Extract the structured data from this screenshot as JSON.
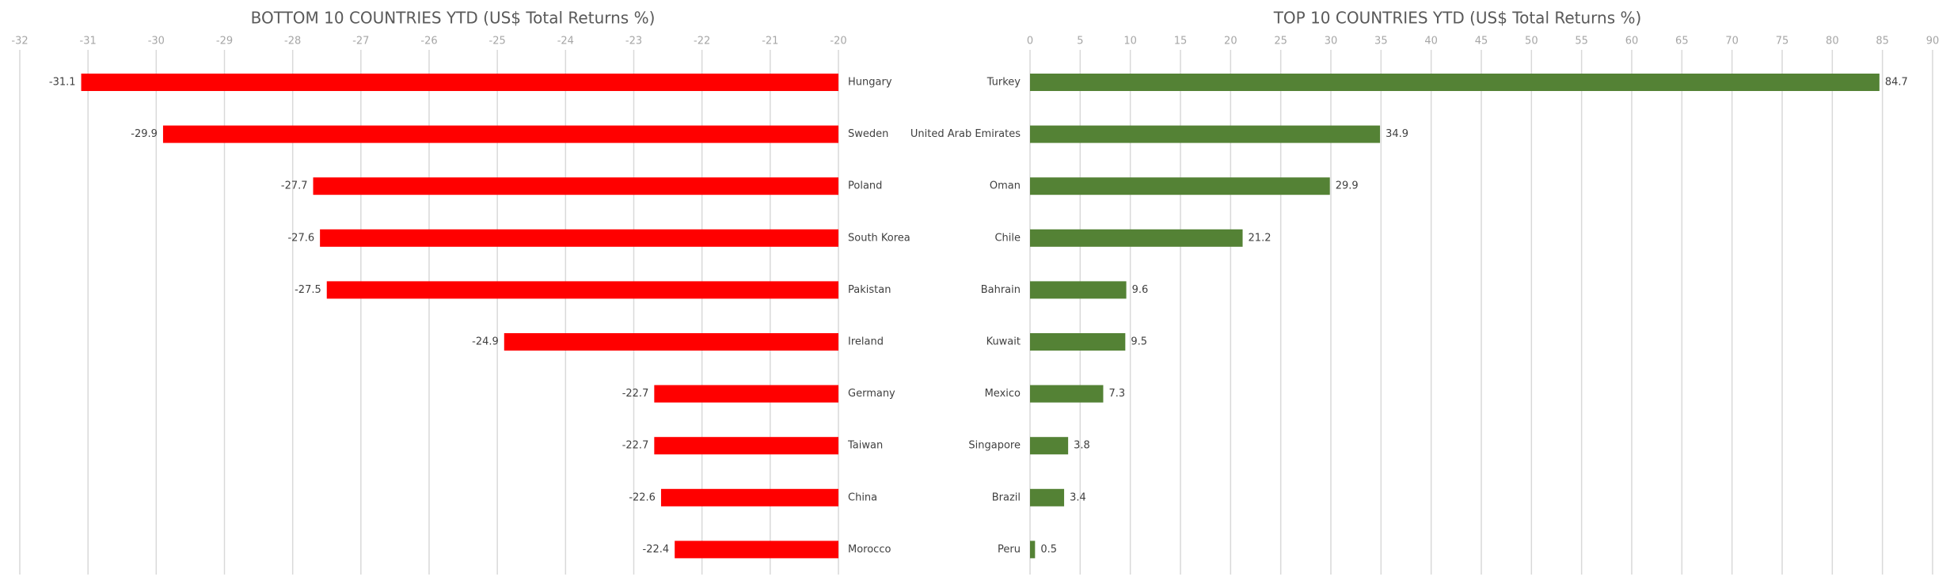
{
  "chart_data": [
    {
      "type": "bar",
      "orientation": "horizontal",
      "title": "BOTTOM 10 COUNTRIES YTD (US$ Total Returns %)",
      "categories": [
        "Hungary",
        "Sweden",
        "Poland",
        "South Korea",
        "Pakistan",
        "Ireland",
        "Germany",
        "Taiwan",
        "China",
        "Morocco"
      ],
      "values": [
        -31.1,
        -29.9,
        -27.7,
        -27.6,
        -27.5,
        -24.9,
        -22.7,
        -22.7,
        -22.6,
        -22.4
      ],
      "color": "#ff0000",
      "xlim": [
        -32,
        -20
      ],
      "xticks": [
        -32,
        -31,
        -30,
        -29,
        -28,
        -27,
        -26,
        -25,
        -24,
        -23,
        -22,
        -21,
        -20
      ],
      "grid": true
    },
    {
      "type": "bar",
      "orientation": "horizontal",
      "title": "TOP 10 COUNTRIES YTD (US$ Total Returns %)",
      "categories": [
        "Turkey",
        "United Arab Emirates",
        "Oman",
        "Chile",
        "Bahrain",
        "Kuwait",
        "Mexico",
        "Singapore",
        "Brazil",
        "Peru"
      ],
      "values": [
        84.7,
        34.9,
        29.9,
        21.2,
        9.6,
        9.5,
        7.3,
        3.8,
        3.4,
        0.5
      ],
      "color": "#548235",
      "xlim": [
        0,
        90
      ],
      "xticks": [
        0,
        5,
        10,
        15,
        20,
        25,
        30,
        35,
        40,
        45,
        50,
        55,
        60,
        65,
        70,
        75,
        80,
        85,
        90
      ],
      "grid": true
    }
  ]
}
